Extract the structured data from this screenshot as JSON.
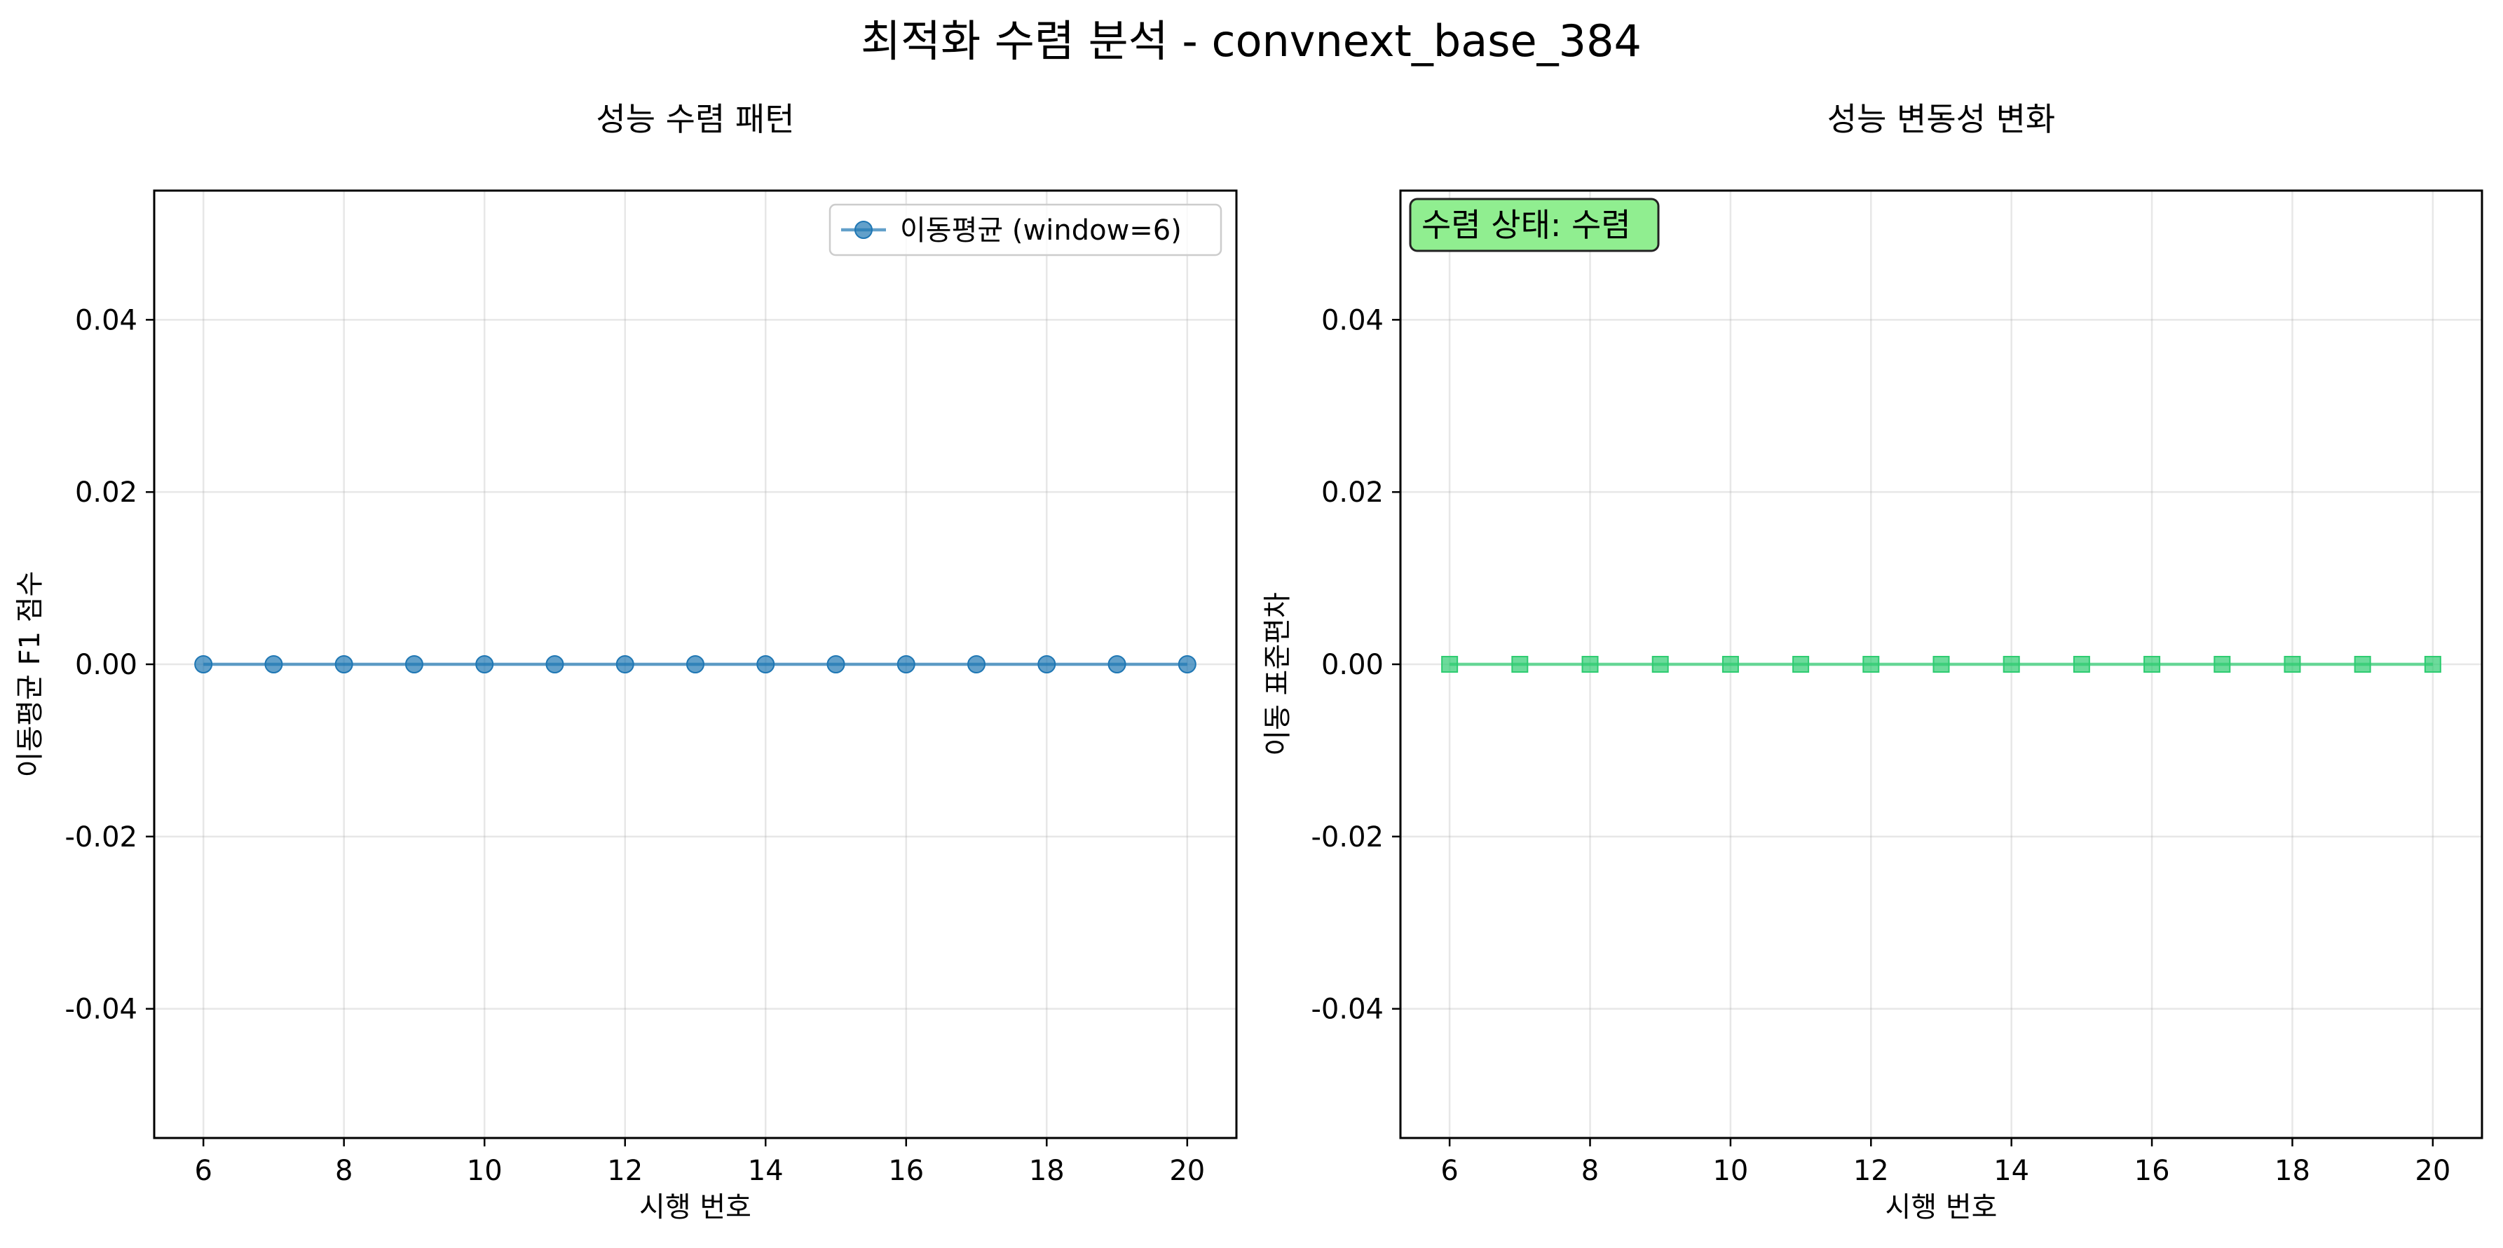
{
  "figure": {
    "title": "최적화 수렴 분석 - convnext_base_384"
  },
  "chart_data": [
    {
      "type": "line",
      "title": "성능 수렴 패턴",
      "xlabel": "시행 번호",
      "ylabel": "이동평균 F1 점수",
      "xlim": [
        5.3,
        20.7
      ],
      "ylim": [
        -0.055,
        0.055
      ],
      "xticks": [
        6,
        8,
        10,
        12,
        14,
        16,
        18,
        20
      ],
      "xtick_labels": [
        "6",
        "8",
        "10",
        "12",
        "14",
        "16",
        "18",
        "20"
      ],
      "yticks": [
        -0.04,
        -0.02,
        0.0,
        0.02,
        0.04
      ],
      "ytick_labels": [
        "-0.04",
        "-0.02",
        "0.00",
        "0.02",
        "0.04"
      ],
      "grid": true,
      "legend": "top-right",
      "series": [
        {
          "name": "이동평균 (window=6)",
          "marker": "circle",
          "color": "#1f77b4",
          "x": [
            6,
            7,
            8,
            9,
            10,
            11,
            12,
            13,
            14,
            15,
            16,
            17,
            18,
            19,
            20
          ],
          "y": [
            0,
            0,
            0,
            0,
            0,
            0,
            0,
            0,
            0,
            0,
            0,
            0,
            0,
            0,
            0
          ]
        }
      ]
    },
    {
      "type": "line",
      "title": "성능 변동성 변화",
      "xlabel": "시행 번호",
      "ylabel": "이동 표준편차",
      "xlim": [
        5.3,
        20.7
      ],
      "ylim": [
        -0.055,
        0.055
      ],
      "xticks": [
        6,
        8,
        10,
        12,
        14,
        16,
        18,
        20
      ],
      "xtick_labels": [
        "6",
        "8",
        "10",
        "12",
        "14",
        "16",
        "18",
        "20"
      ],
      "yticks": [
        -0.04,
        -0.02,
        0.0,
        0.02,
        0.04
      ],
      "ytick_labels": [
        "-0.04",
        "-0.02",
        "0.00",
        "0.02",
        "0.04"
      ],
      "grid": true,
      "annotation": {
        "text": "수렴 상태: 수렴",
        "placement": "top-left",
        "bg": "#90ee90"
      },
      "series": [
        {
          "marker": "square",
          "color": "#2ecc71",
          "x": [
            6,
            7,
            8,
            9,
            10,
            11,
            12,
            13,
            14,
            15,
            16,
            17,
            18,
            19,
            20
          ],
          "y": [
            0,
            0,
            0,
            0,
            0,
            0,
            0,
            0,
            0,
            0,
            0,
            0,
            0,
            0,
            0
          ]
        }
      ]
    }
  ]
}
